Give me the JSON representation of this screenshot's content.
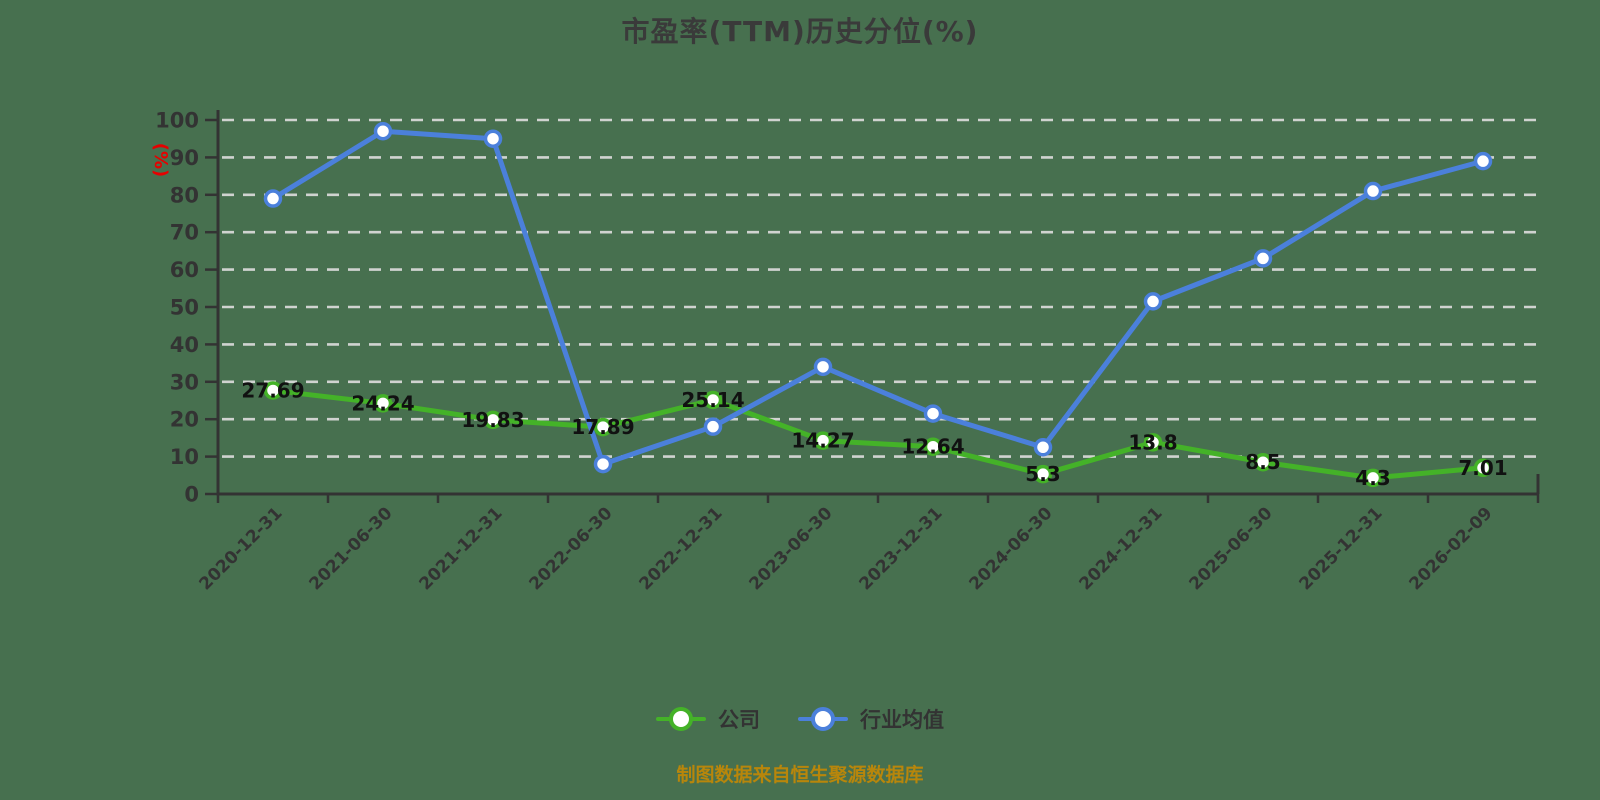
{
  "title": "市盈率(TTM)历史分位(%)",
  "source_note": "制图数据来自恒生聚源数据库",
  "colors": {
    "background": "#47704f",
    "title": "#3a3a3a",
    "axis": "#333333",
    "tick_label": "#333333",
    "grid": "#d0d3d0",
    "value_label": "#111111",
    "ylabel": "#e60000",
    "marker_fill": "#ffffff",
    "source_note": "#b8860b",
    "legend_label": "#333333",
    "company": "#44b228",
    "industry": "#4b80db"
  },
  "chart_data": {
    "type": "line",
    "title": "市盈率(TTM)历史分位(%)",
    "categories": [
      "2020-12-31",
      "2021-06-30",
      "2021-12-31",
      "2022-06-30",
      "2022-12-31",
      "2023-06-30",
      "2023-12-31",
      "2024-06-30",
      "2024-12-31",
      "2025-06-30",
      "2025-12-31",
      "2026-02-09"
    ],
    "series": [
      {
        "name": "公司",
        "color": "#44b228",
        "values": [
          27.69,
          24.24,
          19.83,
          17.89,
          25.14,
          14.27,
          12.64,
          5.3,
          13.8,
          8.5,
          4.3,
          7.01
        ],
        "value_labels": [
          "27.69",
          "24.24",
          "19.83",
          "17.89",
          "25.14",
          "14.27",
          "12.64",
          "5.3",
          "13.8",
          "8.5",
          "4.3",
          "7.01"
        ],
        "show_labels": true
      },
      {
        "name": "行业均值",
        "color": "#4b80db",
        "values": [
          79,
          97,
          95,
          8,
          18,
          34,
          21.5,
          12.5,
          51.5,
          63,
          81,
          89
        ],
        "value_labels": [],
        "show_labels": false
      }
    ],
    "xlabel": "",
    "ylabel": "(%)",
    "ylim": [
      0,
      100
    ],
    "ytick_interval": 10,
    "grid": "horizontal-dashed",
    "legend_position": "bottom"
  }
}
